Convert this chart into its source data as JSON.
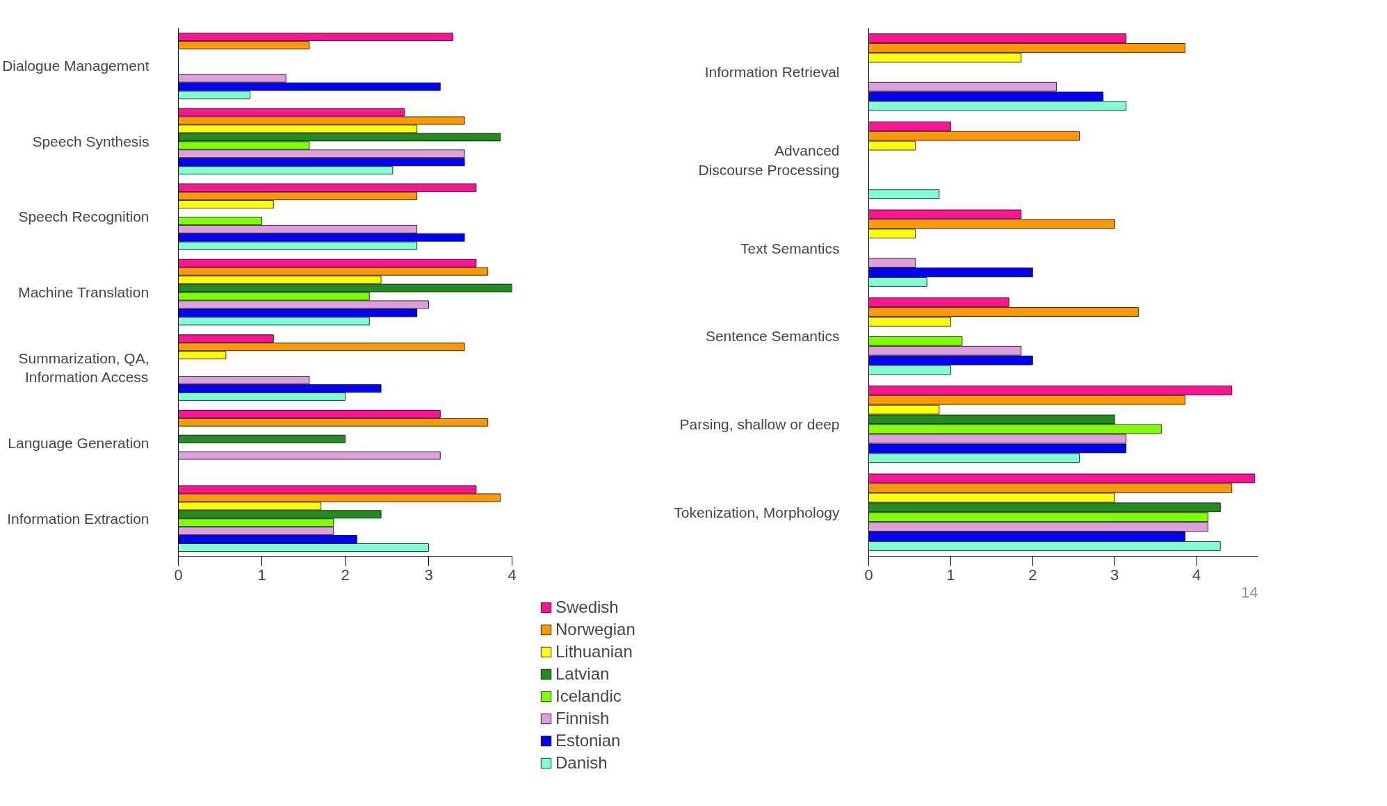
{
  "chart_data": [
    {
      "type": "bar",
      "orientation": "horizontal",
      "legend": "bottom right",
      "categories": [
        "Dialogue Management",
        "Speech Synthesis",
        "Speech Recognition",
        "Machine Translation",
        "Summarization, QA,\nInformation Access",
        "Language Generation",
        "Information Extraction"
      ],
      "xlim": [
        0,
        4
      ],
      "xticks": [
        0,
        1,
        2,
        3,
        4
      ],
      "series": [
        {
          "name": "Swedish",
          "color": "#ff1493",
          "values": [
            3.29,
            2.71,
            3.57,
            3.57,
            1.14,
            3.14,
            3.57
          ]
        },
        {
          "name": "Norwegian",
          "color": "#ff9900",
          "values": [
            1.57,
            3.43,
            2.86,
            3.71,
            3.43,
            3.71,
            3.86
          ]
        },
        {
          "name": "Lithuanian",
          "color": "#ffff00",
          "values": [
            null,
            2.86,
            1.14,
            2.43,
            0.57,
            null,
            1.71
          ]
        },
        {
          "name": "Latvian",
          "color": "#228b22",
          "values": [
            null,
            3.86,
            null,
            4.0,
            null,
            2.0,
            2.43
          ]
        },
        {
          "name": "Icelandic",
          "color": "#7fff00",
          "values": [
            null,
            1.57,
            1.0,
            2.29,
            null,
            null,
            1.86
          ]
        },
        {
          "name": "Finnish",
          "color": "#dda0dd",
          "values": [
            1.29,
            3.43,
            2.86,
            3.0,
            1.57,
            3.14,
            1.86
          ]
        },
        {
          "name": "Estonian",
          "color": "#0000ff",
          "values": [
            3.14,
            3.43,
            3.43,
            2.86,
            2.43,
            null,
            2.14
          ]
        },
        {
          "name": "Danish",
          "color": "#7fffd4",
          "values": [
            0.86,
            2.57,
            2.86,
            2.29,
            2.0,
            null,
            3.0
          ]
        }
      ]
    },
    {
      "type": "bar",
      "orientation": "horizontal",
      "categories": [
        "Information Retrieval",
        "Advanced\nDiscourse Processing",
        "Text Semantics",
        "Sentence Semantics",
        "Parsing, shallow or deep",
        "Tokenization, Morphology"
      ],
      "xlim": [
        0,
        4.75
      ],
      "xticks": [
        0,
        1,
        2,
        3,
        4
      ],
      "annotations": [
        "14"
      ],
      "series": [
        {
          "color": "#ff1493",
          "values": [
            3.14,
            1.0,
            1.86,
            1.71,
            4.43,
            4.71
          ]
        },
        {
          "color": "#ff9900",
          "values": [
            3.86,
            2.57,
            3.0,
            3.29,
            3.86,
            4.43
          ]
        },
        {
          "color": "#ffff00",
          "values": [
            1.86,
            0.57,
            0.57,
            1.0,
            0.86,
            3.0
          ]
        },
        {
          "color": "#228b22",
          "values": [
            null,
            null,
            null,
            null,
            3.0,
            4.29
          ]
        },
        {
          "color": "#7fff00",
          "values": [
            null,
            null,
            null,
            1.14,
            3.57,
            4.14
          ]
        },
        {
          "color": "#dda0dd",
          "values": [
            2.29,
            null,
            0.57,
            1.86,
            3.14,
            4.14
          ]
        },
        {
          "color": "#0000ff",
          "values": [
            2.86,
            null,
            2.0,
            2.0,
            3.14,
            3.86
          ]
        },
        {
          "color": "#7fffd4",
          "values": [
            3.14,
            0.86,
            0.71,
            1.0,
            2.57,
            4.29
          ]
        }
      ]
    }
  ]
}
